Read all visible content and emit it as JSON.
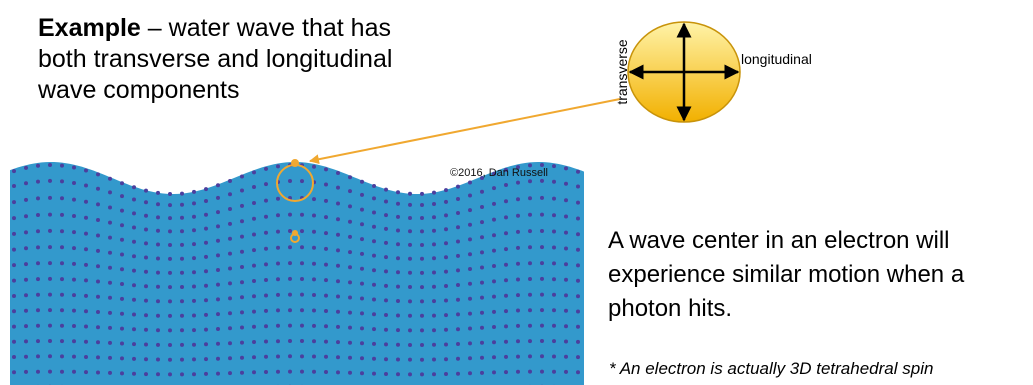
{
  "example": {
    "heading": "Example",
    "line1_rest": " – water wave that has",
    "line2": "both transverse and longitudinal",
    "line3": "wave components"
  },
  "axes": {
    "longitudinal_label": "longitudinal",
    "transverse_label": "transverse"
  },
  "copyright": "©2016, Dan Russell",
  "caption": {
    "line1": "A wave center in an electron will",
    "line2": "experience similar motion when a",
    "line3": "photon hits."
  },
  "footnote": "* An electron is actually 3D tetrahedral spin",
  "colors": {
    "water": "#3399cc",
    "particle": "#4b3f9e",
    "highlight": "#f0a830",
    "ellipse_top": "#fff3a8",
    "ellipse_bottom": "#f2b000"
  }
}
